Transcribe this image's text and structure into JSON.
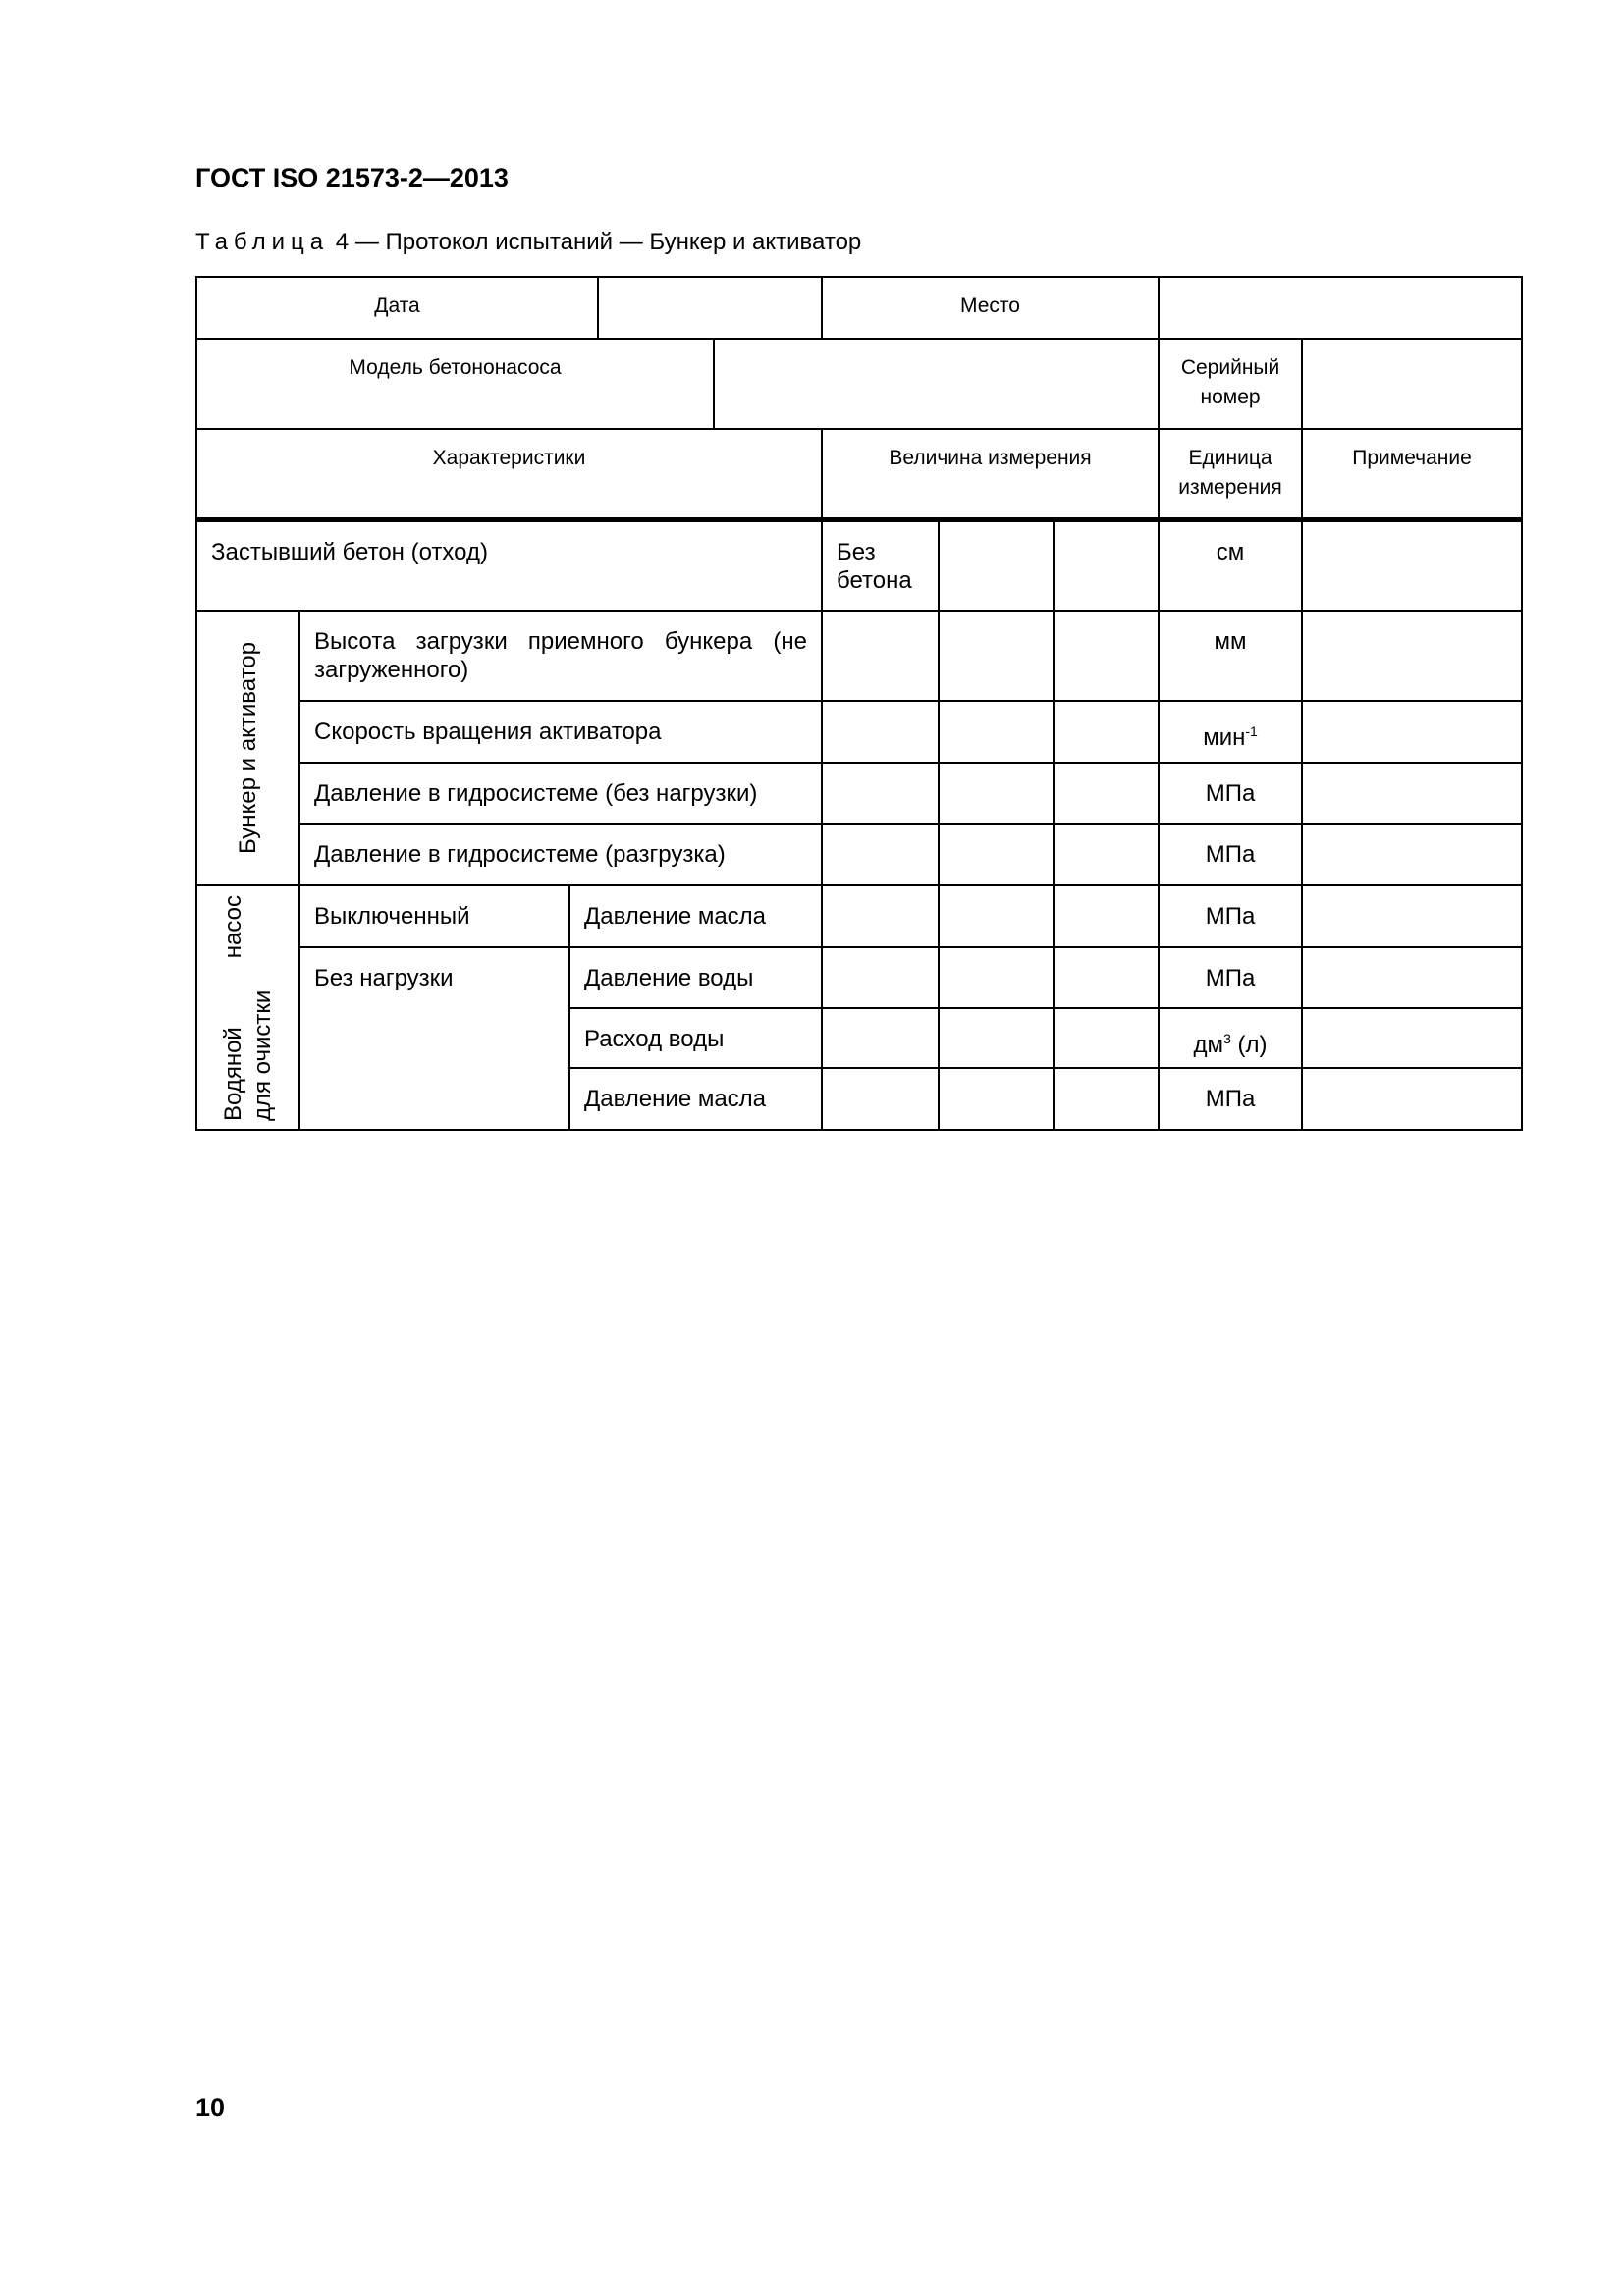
{
  "header": {
    "doc_code": "ГОСТ ISO 21573-2—2013"
  },
  "caption": {
    "prefix": "Таблица",
    "number": "4",
    "title": "— Протокол испытаний — Бункер и активатор"
  },
  "table": {
    "date_label": "Дата",
    "place_label": "Место",
    "model_label": "Модель бетононасоса",
    "serial_label": "Серийный номер",
    "col_characteristics": "Характеристики",
    "col_measurement": "Величина измерения",
    "col_unit": "Единица измерения",
    "col_note": "Примечание",
    "row_hardened": {
      "label": "Застывший бетон (отход)",
      "sub": "Без бетона",
      "unit": "см"
    },
    "group1": {
      "label": "Бункер и активатор",
      "rows": [
        {
          "label": "Высота загрузки приемного бункера (не загруженного)",
          "unit": "мм"
        },
        {
          "label": "Скорость вращения активатора",
          "unit": "мин",
          "unit_sup": "-1"
        },
        {
          "label": "Давление в гидросистеме (без нагрузки)",
          "unit": "МПа"
        },
        {
          "label": "Давление в гидросистеме (разгрузка)",
          "unit": "МПа"
        }
      ]
    },
    "group2": {
      "label_line1": "Водяной насос",
      "label_line2": "для очистки",
      "off_label": "Выключенный",
      "noload_label": "Без нагрузки",
      "rows": [
        {
          "label": "Давление масла",
          "unit": "МПа"
        },
        {
          "label": "Давление воды",
          "unit": "МПа"
        },
        {
          "label": "Расход воды",
          "unit": "дм",
          "unit_sup": "3",
          "unit_suffix": " (л)"
        },
        {
          "label": "Давление масла",
          "unit": "МПа"
        }
      ]
    }
  },
  "footer": {
    "page_number": "10"
  }
}
